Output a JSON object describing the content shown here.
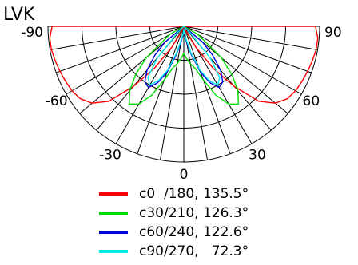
{
  "chart_data": {
    "type": "polar",
    "title": "LVK",
    "angular_axis": {
      "range_deg": [
        -90,
        90
      ],
      "labels": [
        "-90",
        "-60",
        "-30",
        "0",
        "30",
        "60",
        "90"
      ],
      "label_angles": [
        -90,
        -60,
        -30,
        0,
        30,
        60,
        90
      ],
      "spoke_step_deg": 10
    },
    "radial_axis": {
      "rings": 4
    },
    "grid": true,
    "legend": "bottom",
    "series": [
      {
        "name": "c0  /180, 135.5°",
        "color": "#ff0000",
        "angles": [
          -90,
          -85,
          -80,
          -75,
          -70,
          -65,
          -60,
          -55,
          -50,
          -45,
          -40,
          -35,
          -30,
          -25,
          -20,
          -15,
          -10,
          -5,
          0,
          5,
          10,
          15,
          20,
          25,
          30,
          35,
          40,
          45,
          50,
          55,
          60,
          65,
          70,
          75,
          80,
          85,
          90
        ],
        "values": [
          0.97,
          0.99,
          0.99,
          0.98,
          0.97,
          0.96,
          0.95,
          0.93,
          0.88,
          0.78,
          0.58,
          0.38,
          0.18,
          0.05,
          0.0,
          0.0,
          0.0,
          0.0,
          0.0,
          0.0,
          0.0,
          0.0,
          0.0,
          0.05,
          0.18,
          0.38,
          0.58,
          0.78,
          0.88,
          0.93,
          0.95,
          0.96,
          0.97,
          0.98,
          0.99,
          0.99,
          0.97
        ]
      },
      {
        "name": "c30/210, 126.3°",
        "color": "#00dd00",
        "angles": [
          -90,
          -80,
          -70,
          -60,
          -50,
          -45,
          -40,
          -35,
          -30,
          -25,
          -20,
          -15,
          -10,
          -5,
          0,
          5,
          10,
          15,
          20,
          25,
          30,
          35,
          40,
          45,
          50,
          60,
          70,
          80,
          90
        ],
        "values": [
          0.0,
          0.0,
          0.0,
          0.12,
          0.36,
          0.5,
          0.62,
          0.7,
          0.66,
          0.56,
          0.42,
          0.32,
          0.28,
          0.24,
          0.2,
          0.24,
          0.28,
          0.32,
          0.42,
          0.56,
          0.66,
          0.7,
          0.62,
          0.5,
          0.36,
          0.12,
          0.0,
          0.0,
          0.0
        ]
      },
      {
        "name": "c60/240, 122.6°",
        "color": "#0000dd",
        "angles": [
          -90,
          -80,
          -70,
          -60,
          -50,
          -45,
          -40,
          -35,
          -30,
          -25,
          -20,
          -15,
          -10,
          -5,
          0,
          5,
          10,
          15,
          20,
          25,
          30,
          35,
          40,
          45,
          50,
          60,
          70,
          80,
          90
        ],
        "values": [
          0.0,
          0.0,
          0.0,
          0.0,
          0.18,
          0.3,
          0.42,
          0.5,
          0.52,
          0.46,
          0.36,
          0.22,
          0.12,
          0.06,
          0.03,
          0.06,
          0.12,
          0.22,
          0.36,
          0.46,
          0.52,
          0.5,
          0.42,
          0.3,
          0.18,
          0.0,
          0.0,
          0.0,
          0.0
        ]
      },
      {
        "name": "c90/270,   72.3°",
        "color": "#00eeee",
        "angles": [
          -90,
          -70,
          -50,
          -45,
          -40,
          -35,
          -30,
          -25,
          -20,
          -15,
          -10,
          -5,
          0,
          5,
          10,
          15,
          20,
          25,
          30,
          35,
          40,
          45,
          50,
          70,
          90
        ],
        "values": [
          0.0,
          0.0,
          0.0,
          0.06,
          0.3,
          0.46,
          0.5,
          0.44,
          0.34,
          0.2,
          0.1,
          0.05,
          0.02,
          0.05,
          0.1,
          0.2,
          0.34,
          0.44,
          0.5,
          0.46,
          0.3,
          0.06,
          0.0,
          0.0,
          0.0
        ]
      }
    ]
  }
}
